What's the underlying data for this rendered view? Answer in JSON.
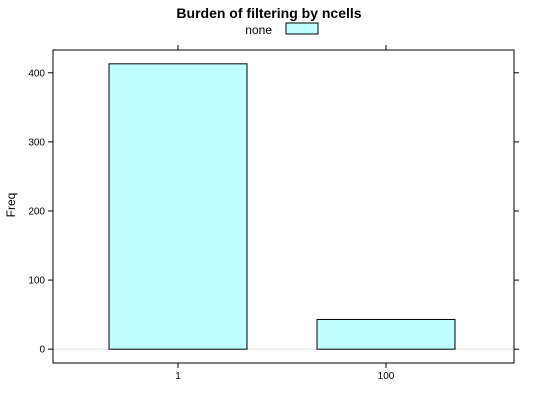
{
  "chart_data": {
    "type": "bar",
    "title": "Burden of filtering by ncells",
    "xlabel": "",
    "ylabel": "Freq",
    "categories": [
      "1",
      "100"
    ],
    "series": [
      {
        "name": "none",
        "values": [
          413,
          43
        ]
      }
    ],
    "ylim": [
      -20,
      433
    ],
    "yticks": [
      0,
      100,
      200,
      300,
      400
    ],
    "legend": {
      "position": "top",
      "entries": [
        "none"
      ]
    },
    "grid": false,
    "colors": {
      "bar_fill": "#C0FFFF",
      "bar_stroke": "#000000",
      "zero_line": "#E0E0E0"
    }
  }
}
